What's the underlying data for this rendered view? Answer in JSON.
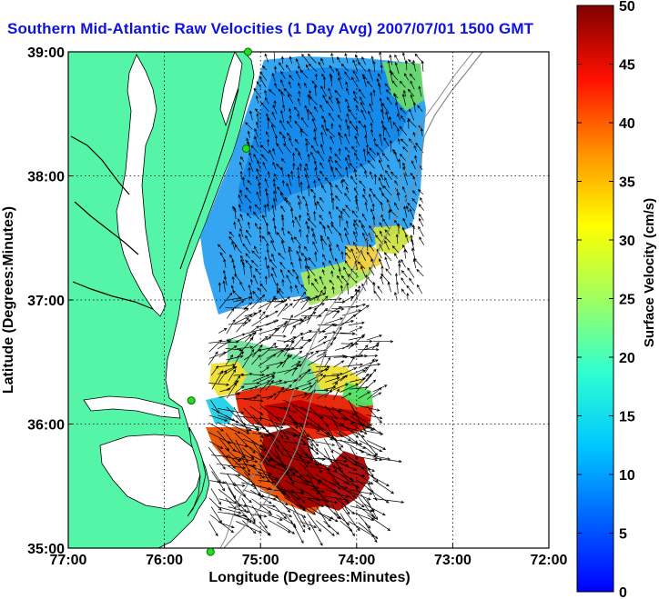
{
  "title": "Southern Mid-Atlantic Raw Velocities (1 Day Avg) 2007/07/01 1500 GMT",
  "map": {
    "xlabel": "Longitude (Degrees:Minutes)",
    "ylabel": "Latitude (Degrees:Minutes)",
    "x_ticks": [
      "77:00",
      "76:00",
      "75:00",
      "74:00",
      "73:00",
      "72:00"
    ],
    "y_ticks": [
      "39:00",
      "38:00",
      "37:00",
      "36:00",
      "35:00"
    ],
    "lon_range": [
      -77,
      -72
    ],
    "lat_range": [
      35,
      39
    ],
    "land_color": "#55f5a8",
    "grid": "dotted"
  },
  "colorbar": {
    "label": "Surface Velocity (cm/s)",
    "ticks": [
      "50",
      "45",
      "40",
      "35",
      "30",
      "25",
      "20",
      "15",
      "10",
      "5",
      "0"
    ],
    "range": [
      0,
      50
    ],
    "colormap": "jet"
  },
  "stations": [
    {
      "lon": -75.13,
      "lat": 39.0
    },
    {
      "lon": -75.15,
      "lat": 38.22
    },
    {
      "lon": -75.72,
      "lat": 36.19
    },
    {
      "lon": -75.52,
      "lat": 34.97
    }
  ]
}
